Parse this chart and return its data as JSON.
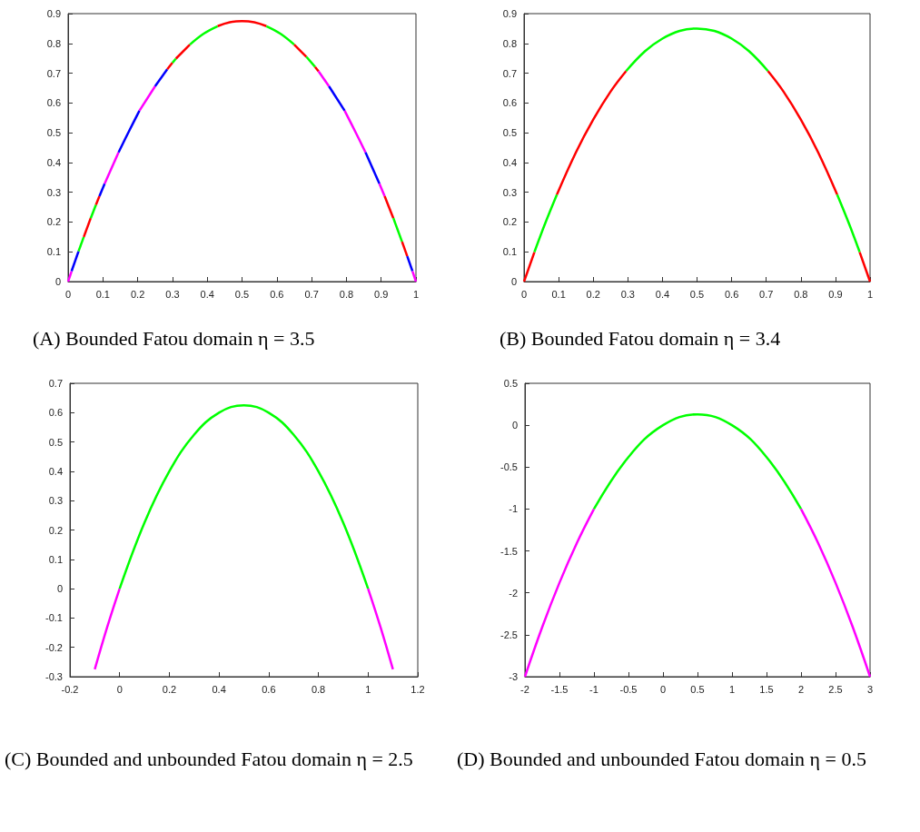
{
  "chart_data": [
    {
      "type": "line",
      "title": "(A) Bounded Fatou domain η = 3.5",
      "xlim": [
        0,
        1
      ],
      "ylim": [
        0,
        0.9
      ],
      "xticks": [
        0,
        0.1,
        0.2,
        0.3,
        0.4,
        0.5,
        0.6,
        0.7,
        0.8,
        0.9,
        1
      ],
      "yticks": [
        0,
        0.1,
        0.2,
        0.3,
        0.4,
        0.5,
        0.6,
        0.7,
        0.8,
        0.9
      ],
      "marker": "none",
      "series": [
        {
          "color": "#ff00ff",
          "x": [
            0,
            0.01
          ],
          "values": [
            0,
            0.035
          ]
        },
        {
          "color": "#0000ff",
          "x": [
            0.01,
            0.03
          ],
          "values": [
            0.035,
            0.102
          ]
        },
        {
          "color": "#00ff00",
          "x": [
            0.03,
            0.045
          ],
          "values": [
            0.102,
            0.15
          ]
        },
        {
          "color": "#ff0000",
          "x": [
            0.045,
            0.065
          ],
          "values": [
            0.15,
            0.213
          ]
        },
        {
          "color": "#00ff00",
          "x": [
            0.065,
            0.08
          ],
          "values": [
            0.213,
            0.258
          ]
        },
        {
          "color": "#ff0000",
          "x": [
            0.08,
            0.09
          ],
          "values": [
            0.258,
            0.287
          ]
        },
        {
          "color": "#0000ff",
          "x": [
            0.09,
            0.105
          ],
          "values": [
            0.287,
            0.329
          ]
        },
        {
          "color": "#ff00ff",
          "x": [
            0.105,
            0.145
          ],
          "values": [
            0.329,
            0.434
          ]
        },
        {
          "color": "#0000ff",
          "x": [
            0.145,
            0.175,
            0.205
          ],
          "values": [
            0.434,
            0.505,
            0.574
          ]
        },
        {
          "color": "#ff00ff",
          "x": [
            0.205,
            0.25
          ],
          "values": [
            0.574,
            0.656
          ]
        },
        {
          "color": "#0000ff",
          "x": [
            0.25,
            0.285
          ],
          "values": [
            0.656,
            0.713
          ]
        },
        {
          "color": "#ff0000",
          "x": [
            0.285,
            0.3
          ],
          "values": [
            0.713,
            0.735
          ]
        },
        {
          "color": "#00ff00",
          "x": [
            0.3,
            0.31
          ],
          "values": [
            0.735,
            0.749
          ]
        },
        {
          "color": "#ff0000",
          "x": [
            0.31,
            0.35
          ],
          "values": [
            0.749,
            0.796
          ]
        },
        {
          "color": "#00ff00",
          "x": [
            0.35,
            0.39,
            0.43
          ],
          "values": [
            0.796,
            0.833,
            0.858
          ]
        },
        {
          "color": "#ff0000",
          "x": [
            0.43,
            0.465,
            0.5,
            0.535,
            0.57
          ],
          "values": [
            0.858,
            0.871,
            0.875,
            0.871,
            0.858
          ]
        },
        {
          "color": "#00ff00",
          "x": [
            0.57,
            0.61,
            0.65
          ],
          "values": [
            0.858,
            0.833,
            0.796
          ]
        },
        {
          "color": "#ff0000",
          "x": [
            0.65,
            0.685
          ],
          "values": [
            0.796,
            0.755
          ]
        },
        {
          "color": "#00ff00",
          "x": [
            0.685,
            0.71
          ],
          "values": [
            0.755,
            0.721
          ]
        },
        {
          "color": "#ff0000",
          "x": [
            0.71,
            0.72
          ],
          "values": [
            0.721,
            0.706
          ]
        },
        {
          "color": "#ff00ff",
          "x": [
            0.72,
            0.75
          ],
          "values": [
            0.706,
            0.656
          ]
        },
        {
          "color": "#0000ff",
          "x": [
            0.75,
            0.795
          ],
          "values": [
            0.656,
            0.574
          ]
        },
        {
          "color": "#ff00ff",
          "x": [
            0.795,
            0.825,
            0.855
          ],
          "values": [
            0.574,
            0.505,
            0.434
          ]
        },
        {
          "color": "#0000ff",
          "x": [
            0.855,
            0.895
          ],
          "values": [
            0.434,
            0.329
          ]
        },
        {
          "color": "#ff00ff",
          "x": [
            0.895,
            0.91
          ],
          "values": [
            0.329,
            0.287
          ]
        },
        {
          "color": "#ff0000",
          "x": [
            0.91,
            0.935
          ],
          "values": [
            0.287,
            0.213
          ]
        },
        {
          "color": "#00ff00",
          "x": [
            0.935,
            0.96
          ],
          "values": [
            0.213,
            0.134
          ]
        },
        {
          "color": "#ff0000",
          "x": [
            0.96,
            0.975
          ],
          "values": [
            0.134,
            0.085
          ]
        },
        {
          "color": "#0000ff",
          "x": [
            0.975,
            0.99
          ],
          "values": [
            0.085,
            0.035
          ]
        },
        {
          "color": "#ff00ff",
          "x": [
            0.99,
            1
          ],
          "values": [
            0.035,
            0
          ]
        }
      ]
    },
    {
      "type": "line",
      "title": "(B) Bounded Fatou domain η = 3.4",
      "xlim": [
        0,
        1
      ],
      "ylim": [
        0,
        0.9
      ],
      "xticks": [
        0,
        0.1,
        0.2,
        0.3,
        0.4,
        0.5,
        0.6,
        0.7,
        0.8,
        0.9,
        1
      ],
      "yticks": [
        0,
        0.1,
        0.2,
        0.3,
        0.4,
        0.5,
        0.6,
        0.7,
        0.8,
        0.9
      ],
      "marker": "none",
      "series": [
        {
          "color": "#ff0000",
          "x": [
            0,
            0.03
          ],
          "values": [
            0,
            0.099
          ]
        },
        {
          "color": "#00ff00",
          "x": [
            0.03,
            0.06,
            0.095
          ],
          "values": [
            0.099,
            0.192,
            0.292
          ]
        },
        {
          "color": "#ff0000",
          "x": [
            0.095,
            0.15,
            0.2,
            0.25,
            0.295
          ],
          "values": [
            0.292,
            0.434,
            0.544,
            0.638,
            0.707
          ]
        },
        {
          "color": "#00ff00",
          "x": [
            0.295,
            0.35,
            0.4,
            0.45,
            0.5,
            0.55,
            0.6,
            0.65,
            0.705
          ],
          "values": [
            0.707,
            0.774,
            0.816,
            0.842,
            0.85,
            0.842,
            0.816,
            0.774,
            0.707
          ]
        },
        {
          "color": "#ff0000",
          "x": [
            0.705,
            0.75,
            0.8,
            0.85,
            0.905
          ],
          "values": [
            0.707,
            0.638,
            0.544,
            0.434,
            0.292
          ]
        },
        {
          "color": "#00ff00",
          "x": [
            0.905,
            0.94,
            0.97
          ],
          "values": [
            0.292,
            0.192,
            0.099
          ]
        },
        {
          "color": "#ff0000",
          "x": [
            0.97,
            1
          ],
          "values": [
            0.099,
            0
          ]
        }
      ]
    },
    {
      "type": "line",
      "title": "(C) Bounded and unbounded Fatou domain η = 2.5",
      "xlim": [
        -0.2,
        1.2
      ],
      "ylim": [
        -0.3,
        0.7
      ],
      "xticks": [
        -0.2,
        0,
        0.2,
        0.4,
        0.6,
        0.8,
        1,
        1.2
      ],
      "yticks": [
        -0.3,
        -0.2,
        -0.1,
        0,
        0.1,
        0.2,
        0.3,
        0.4,
        0.5,
        0.6,
        0.7
      ],
      "marker": "none",
      "series": [
        {
          "color": "#ff00ff",
          "x": [
            -0.1,
            -0.05,
            0
          ],
          "values": [
            -0.275,
            -0.131,
            0
          ]
        },
        {
          "color": "#00ff00",
          "x": [
            0,
            0.1,
            0.2,
            0.3,
            0.4,
            0.5,
            0.6,
            0.7,
            0.8,
            0.9,
            1
          ],
          "values": [
            0,
            0.225,
            0.4,
            0.525,
            0.6,
            0.625,
            0.6,
            0.525,
            0.4,
            0.225,
            0
          ]
        },
        {
          "color": "#ff00ff",
          "x": [
            1,
            1.05,
            1.1
          ],
          "values": [
            0,
            -0.131,
            -0.275
          ]
        }
      ]
    },
    {
      "type": "line",
      "title": "(D) Bounded and unbounded Fatou domain η = 0.5",
      "xlim": [
        -2,
        3
      ],
      "ylim": [
        -3,
        0.5
      ],
      "xticks": [
        -2,
        -1.5,
        -1,
        -0.5,
        0,
        0.5,
        1,
        1.5,
        2,
        2.5,
        3
      ],
      "yticks": [
        -3,
        -2.5,
        -2,
        -1.5,
        -1,
        -0.5,
        0,
        0.5
      ],
      "marker": "none",
      "series": [
        {
          "color": "#ff00ff",
          "x": [
            -2,
            -1.75,
            -1.5,
            -1.25,
            -1
          ],
          "values": [
            -3,
            -2.41,
            -1.88,
            -1.41,
            -1
          ]
        },
        {
          "color": "#00ff00",
          "x": [
            -1,
            -0.5,
            0,
            0.5,
            1,
            1.5,
            2
          ],
          "values": [
            -1,
            -0.38,
            0,
            0.13,
            0,
            -0.38,
            -1
          ]
        },
        {
          "color": "#ff00ff",
          "x": [
            2,
            2.25,
            2.5,
            2.75,
            3
          ],
          "values": [
            -1,
            -1.41,
            -1.88,
            -2.41,
            -3
          ]
        }
      ]
    }
  ]
}
